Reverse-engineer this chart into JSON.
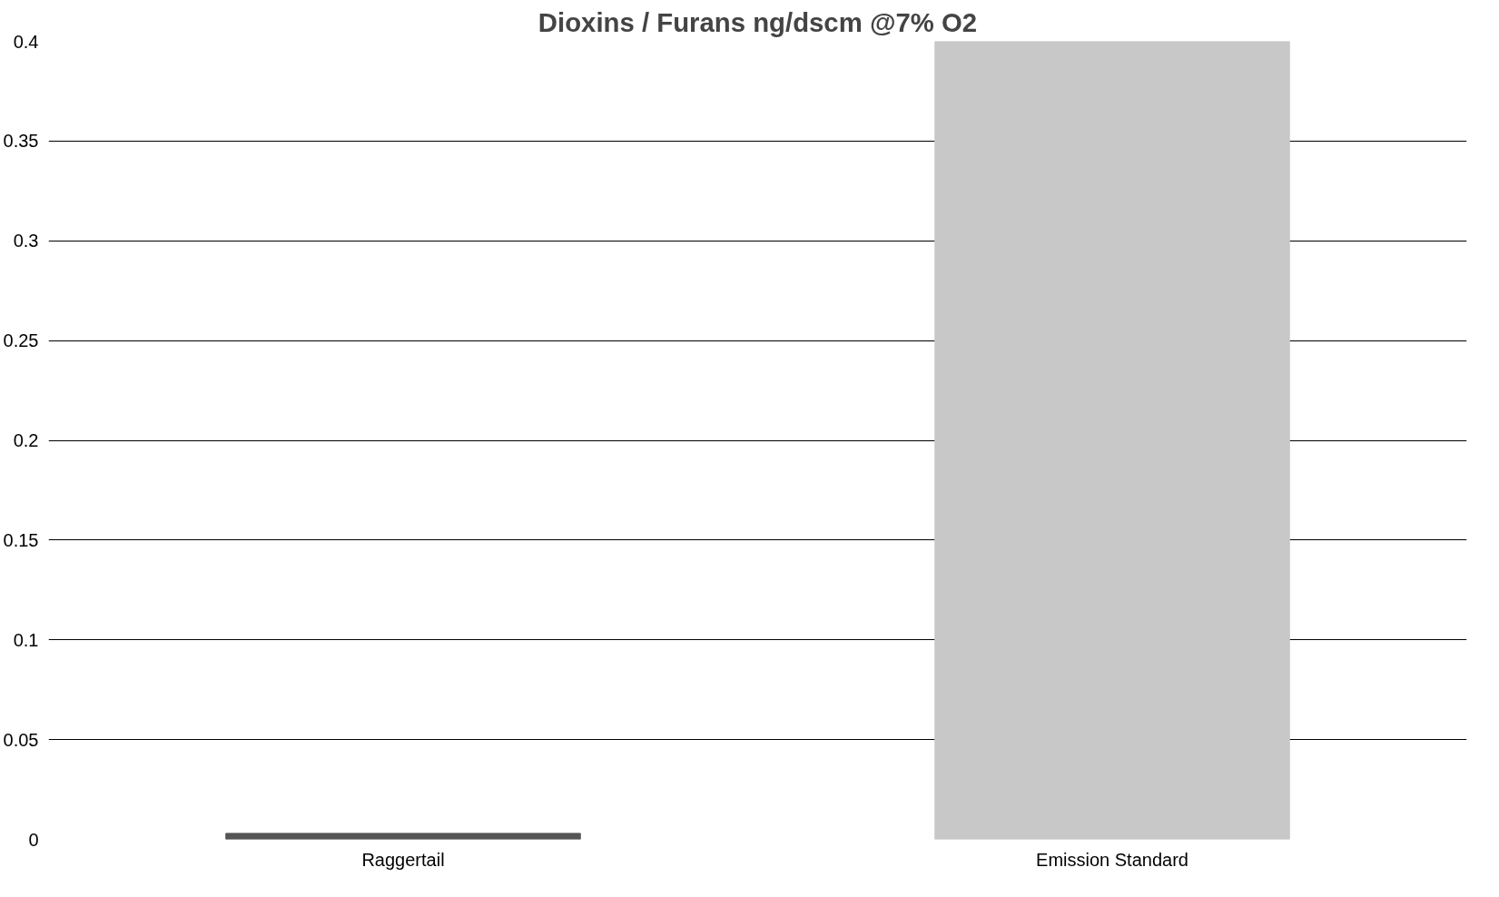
{
  "chart_data": {
    "type": "bar",
    "title": "Dioxins / Furans ng/dscm @7% O2",
    "categories": [
      "Raggertail",
      "Emission Standard"
    ],
    "values": [
      0.003,
      0.4
    ],
    "colors": [
      "#555555",
      "#c8c8c8"
    ],
    "ylim": [
      0,
      0.4
    ],
    "yticks": [
      0,
      0.05,
      0.1,
      0.15,
      0.2,
      0.25,
      0.3,
      0.35,
      0.4
    ],
    "grid": "y"
  }
}
